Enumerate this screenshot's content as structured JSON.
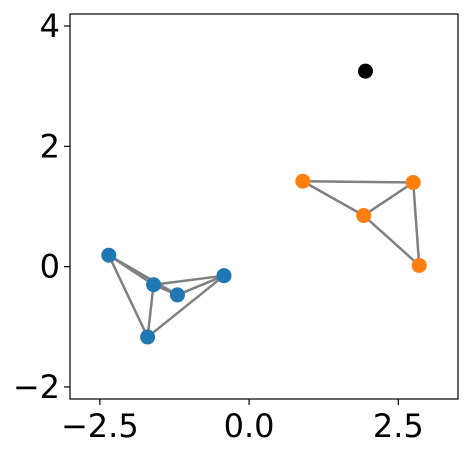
{
  "chart_data": {
    "type": "scatter",
    "title": "",
    "xlabel": "",
    "ylabel": "",
    "xlim": [
      -3.0,
      3.5
    ],
    "ylim": [
      -2.2,
      4.2
    ],
    "grid": false,
    "legend": "none",
    "x_ticks": [
      -2.5,
      0.0,
      2.5
    ],
    "x_tick_labels": [
      "−2.5",
      "0.0",
      "2.5"
    ],
    "y_ticks": [
      -2,
      0,
      2,
      4
    ],
    "y_tick_labels": [
      "−2",
      "0",
      "2",
      "4"
    ],
    "edge_color": "#808080",
    "series": [
      {
        "color": "#1f77b4",
        "points": [
          {
            "x": -2.35,
            "y": 0.19
          },
          {
            "x": -1.6,
            "y": -0.3
          },
          {
            "x": -1.2,
            "y": -0.47
          },
          {
            "x": -0.42,
            "y": -0.15
          },
          {
            "x": -1.7,
            "y": -1.17
          }
        ],
        "edges": [
          [
            0,
            1
          ],
          [
            0,
            2
          ],
          [
            0,
            4
          ],
          [
            1,
            2
          ],
          [
            1,
            3
          ],
          [
            1,
            4
          ],
          [
            2,
            3
          ],
          [
            3,
            4
          ]
        ]
      },
      {
        "color": "#ff7f0e",
        "points": [
          {
            "x": 0.9,
            "y": 1.42
          },
          {
            "x": 2.75,
            "y": 1.4
          },
          {
            "x": 1.92,
            "y": 0.85
          },
          {
            "x": 2.85,
            "y": 0.02
          }
        ],
        "edges": [
          [
            0,
            1
          ],
          [
            0,
            2
          ],
          [
            1,
            2
          ],
          [
            1,
            3
          ],
          [
            2,
            3
          ]
        ]
      },
      {
        "color": "#000000",
        "points": [
          {
            "x": 1.95,
            "y": 3.25
          }
        ],
        "edges": []
      }
    ]
  }
}
